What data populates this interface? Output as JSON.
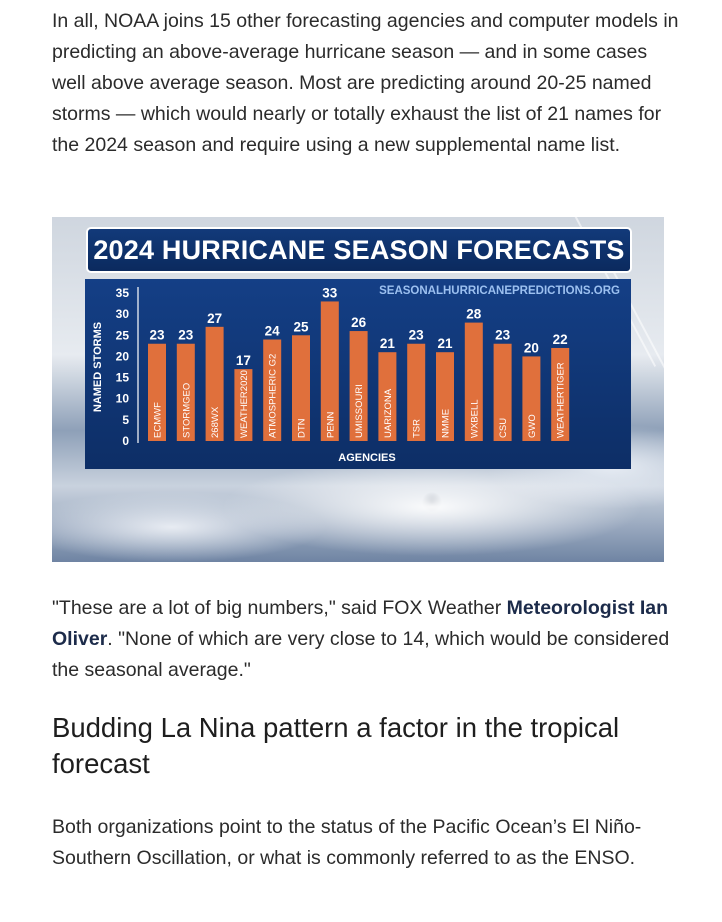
{
  "article": {
    "para1": "In all, NOAA joins 15 other forecasting agencies and computer models in predicting an above-average hurricane season — and in some cases well above average season. Most are predicting around 20-25 named storms — which would nearly or totally exhaust the list of 21 names for the 2024 season and require using a new supplemental name list.",
    "para2_start": "\"These are a lot of big numbers,\" said FOX Weather ",
    "para2_link": "Meteorologist Ian Oliver",
    "para2_end": ". \"None of which are very close to 14, which would be considered the seasonal average.\"",
    "heading": "Budding La Nina pattern a factor in the tropical forecast",
    "para3": "Both organizations point to the status of the Pacific Ocean’s El Niño-Southern Oscillation, or what is commonly referred to as the ENSO."
  },
  "graphic": {
    "banner_title": "2024 HURRICANE SEASON FORECASTS",
    "source": "SEASONALHURRICANEPREDICTIONS.ORG"
  },
  "colors": {
    "bar": "#e0703c",
    "panel": "#123a7a",
    "link": "#1c2b4a"
  },
  "chart_data": {
    "type": "bar",
    "title": "2024 HURRICANE SEASON FORECASTS",
    "xlabel": "AGENCIES",
    "ylabel": "NAMED STORMS",
    "ylim": [
      0,
      35
    ],
    "yticks": [
      0,
      5,
      10,
      15,
      20,
      25,
      30,
      35
    ],
    "categories": [
      "ECMWF",
      "STORMGEO",
      "268WX",
      "WEATHER2020",
      "ATMOSPHERIC G2",
      "DTN",
      "PENN",
      "UMISSOURI",
      "UARIZONA",
      "TSR",
      "NMME",
      "WXBELL",
      "CSU",
      "GWO",
      "WEATHERTIGER"
    ],
    "values": [
      23,
      23,
      27,
      17,
      24,
      25,
      33,
      26,
      21,
      23,
      21,
      28,
      23,
      20,
      22
    ],
    "grid": false,
    "legend": "none"
  }
}
